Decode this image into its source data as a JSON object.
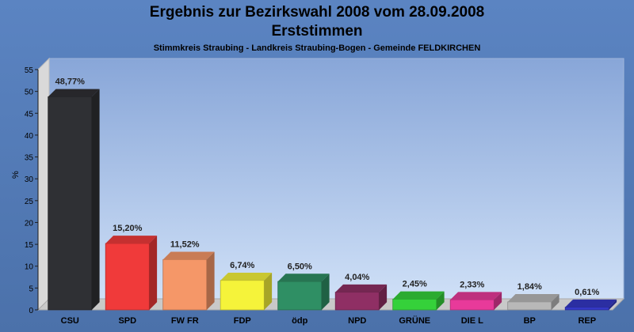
{
  "chart_title": "Ergebnis zur Bezirkswahl 2008 vom 28.09.2008",
  "chart_subtitle": "Erststimmen",
  "chart_caption": "Stimmkreis Straubing - Landkreis Straubing-Bogen - Gemeinde FELDKIRCHEN",
  "chart_data": {
    "type": "bar",
    "title": "Ergebnis zur Bezirkswahl 2008 vom 28.09.2008",
    "subtitle": "Erststimmen",
    "caption": "Stimmkreis Straubing - Landkreis Straubing-Bogen - Gemeinde FELDKIRCHEN",
    "xlabel": "",
    "ylabel": "%",
    "ylim": [
      0,
      55
    ],
    "yticks": [
      0,
      5,
      10,
      15,
      20,
      25,
      30,
      35,
      40,
      45,
      50,
      55
    ],
    "grid": false,
    "categories": [
      "CSU",
      "SPD",
      "FW FR",
      "FDP",
      "ödp",
      "NPD",
      "GRÜNE",
      "DIE L",
      "BP",
      "REP"
    ],
    "values": [
      48.77,
      15.2,
      11.52,
      6.74,
      6.5,
      4.04,
      2.45,
      2.33,
      1.84,
      0.61
    ],
    "value_labels": [
      "48,77%",
      "15,20%",
      "11,52%",
      "6,74%",
      "6,50%",
      "4,04%",
      "2,45%",
      "2,33%",
      "1,84%",
      "0,61%"
    ],
    "colors": [
      "#2f3034",
      "#f03a3a",
      "#f59768",
      "#f5f33a",
      "#2f8f64",
      "#8f2f64",
      "#35d13a",
      "#e83a9a",
      "#b8b8b8",
      "#3438c6"
    ]
  }
}
